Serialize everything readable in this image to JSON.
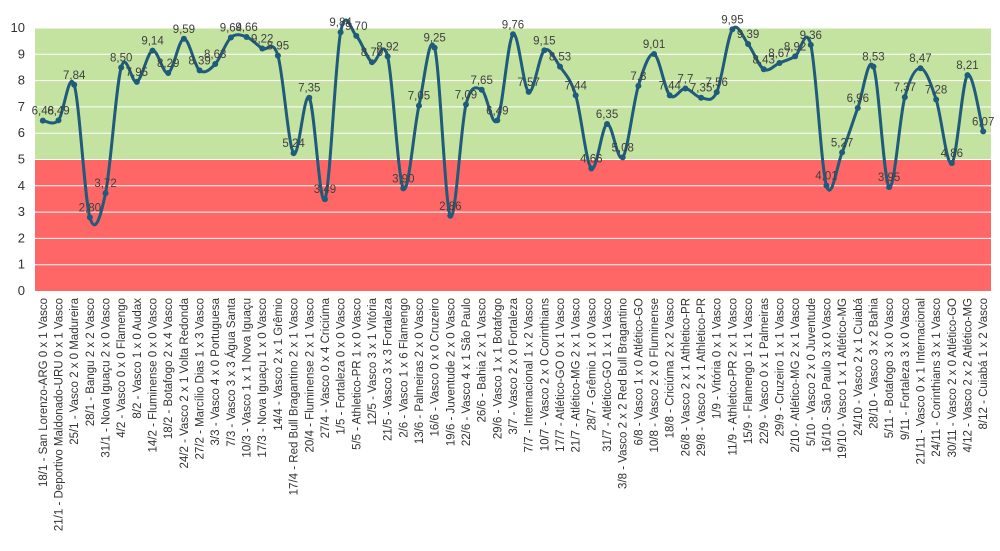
{
  "chart_data": {
    "type": "line",
    "title": "",
    "xlabel": "",
    "ylabel": "",
    "ylim": [
      0,
      10
    ],
    "yticks": [
      "0",
      "1",
      "2",
      "3",
      "4",
      "5",
      "6",
      "7",
      "8",
      "9",
      "10"
    ],
    "bands": [
      {
        "from": 0,
        "to": 5,
        "color": "#ff6666"
      },
      {
        "from": 5,
        "to": 10,
        "color": "#c4e3a1"
      }
    ],
    "colors": {
      "line": "#1f5b7a",
      "gridline": "#ffffff"
    },
    "categories": [
      "18/1 - San Lorenzo-ARG 0 x 1 Vasco",
      "21/1 - Deportivo Maldonado-URU 0 x 1 Vasco",
      "25/1 - Vasco 2 x 0 Madureira",
      "28/1 - Bangu 2 x 2 Vasco",
      "31/1 - Nova Iguaçu 2 x 0 Vasco",
      "4/2 - Vasco 0 x 0 Flamengo",
      "8/2 - Vasco 1 x 0 Audax",
      "14/2 - Fluminense 0 x 0 Vasco",
      "18/2 - Botafogo 2 x 4 Vasco",
      "24/2 - Vasco 2 x 1 Volta Redonda",
      "27/2 - Marcílio Dias 1 x 3 Vasco",
      "3/3 - Vasco 4 x 0 Portuguesa",
      "7/3 - Vasco 3 x 3 Água Santa",
      "10/3 - Vasco 1 x 1 Nova Iguaçu",
      "17/3 - Nova Iguaçu 1 x 0 Vasco",
      "14/4 - Vasco 2 x 1 Grêmio",
      "17/4 - Red Bull Bragantino 2 x 1 Vasco",
      "20/4 - Fluminense 2 x 1 Vasco",
      "27/4 - Vasco 0 x 4 Criciúma",
      "1/5 - Fortaleza 0 x 0 Vasco",
      "5/5 - Athletico-PR 1 x 0 Vasco",
      "12/5 - Vasco 3 x 1 Vitória",
      "21/5 - Vasco 3 x 3 Fortaleza",
      "2/6 - Vasco 1 x 6 Flamengo",
      "13/6 - Palmeiras 2 x 0 Vasco",
      "16/6 - Vasco 0 x 0 Cruzeiro",
      "19/6 - Juventude 2 x 0 Vasco",
      "22/6 - Vasco 4 x 1 São Paulo",
      "26/6 - Bahia 2 x 1 Vasco",
      "29/6 - Vasco 1 x 1 Botafogo",
      "3/7 - Vasco 2 x 0 Fortaleza",
      "7/7 - Internacional 1 x 2 Vasco",
      "10/7 - Vasco 2 x 0 Corinthians",
      "17/7 - Atlético-GO 0 x 1 Vasco",
      "21/7 - Atlético-MG 2 x 1 Vasco",
      "28/7 - Grêmio 1 x 0 Vasco",
      "31/7 - Atlético-GO 1 x 1 Vasco",
      "3/8 - Vasco 2 x 2 Red Bull Bragantino",
      "6/8 - Vasco 1 x 0 Atlético-GO",
      "10/8 - Vasco 2 x 0 Fluminense",
      "18/8 - Criciúma 2 x 2 Vasco",
      "26/8 - Vasco 2 x 1 Athletico-PR",
      "29/8 - Vasco 2 x 1 Athletico-PR",
      "1/9 - Vitória 0 x 1 Vasco",
      "11/9 - Athletico-PR 2 x 1 Vasco",
      "15/9 - Flamengo 1 x 1 Vasco",
      "22/9 - Vasco 0 x 1 Palmeiras",
      "29/9 - Cruzeiro 1 x 1 Vasco",
      "2/10 - Atlético-MG 2 x 1 Vasco",
      "5/10 - Vasco 2 x 0 Juventude",
      "16/10 - São Paulo 3 x 0 Vasco",
      "19/10 - Vasco 1 x 1 Atlético-MG",
      "24/10 - Vasco 2 x 1 Cuiabá",
      "28/10 - Vasco 3 x 2 Bahia",
      "5/11 - Botafogo 3 x 0 Vasco",
      "9/11 - Fortaleza 3 x 0 Vasco",
      "21/11 - Vasco 0 x 1 Internacional",
      "24/11 - Corinthians 3 x 1 Vasco",
      "30/11 - Vasco 2 x 0 Atlético-GO",
      "4/12 - Vasco 2 x 2 Atlético-MG",
      "8/12 - Cuiabá 1 x 2 Vasco"
    ],
    "values": [
      6.48,
      6.49,
      7.84,
      2.8,
      3.72,
      8.5,
      7.95,
      9.14,
      8.29,
      9.59,
      8.39,
      8.63,
      9.64,
      9.66,
      9.22,
      8.95,
      5.24,
      7.35,
      3.49,
      9.84,
      9.7,
      8.7,
      8.92,
      3.9,
      7.05,
      9.25,
      2.86,
      7.09,
      7.65,
      6.49,
      9.76,
      7.57,
      9.15,
      8.53,
      7.44,
      4.66,
      6.35,
      5.08,
      7.8,
      9.01,
      7.44,
      7.7,
      7.35,
      7.56,
      9.95,
      9.39,
      8.43,
      8.67,
      8.92,
      9.36,
      4.01,
      5.27,
      6.96,
      8.53,
      3.95,
      7.37,
      8.47,
      7.28,
      4.86,
      8.21,
      6.07
    ],
    "data_labels": [
      "6,48",
      "6,49",
      "7,84",
      "2,80",
      "3,72",
      "8,50",
      "7,95",
      "9,14",
      "8,29",
      "9,59",
      "8,39",
      "8,63",
      "9,64",
      "9,66",
      "9,22",
      "8,95",
      "5,24",
      "7,35",
      "3,49",
      "9,84",
      "9,70",
      "8,70",
      "8,92",
      "3,90",
      "7,05",
      "9,25",
      "2,86",
      "7,09",
      "7,65",
      "6,49",
      "9,76",
      "7,57",
      "9,15",
      "8,53",
      "7,44",
      "4,66",
      "6,35",
      "5,08",
      "7,8",
      "9,01",
      "7,44",
      "7,7",
      "7,35",
      "7,56",
      "9,95",
      "9,39",
      "8,43",
      "8,67",
      "8,92",
      "9,36",
      "4,01",
      "5,27",
      "6,96",
      "8,53",
      "3,95",
      "7,37",
      "8,47",
      "7,28",
      "4,86",
      "8,21",
      "6,07"
    ],
    "grid": true,
    "legend": "none",
    "smooth": true
  }
}
